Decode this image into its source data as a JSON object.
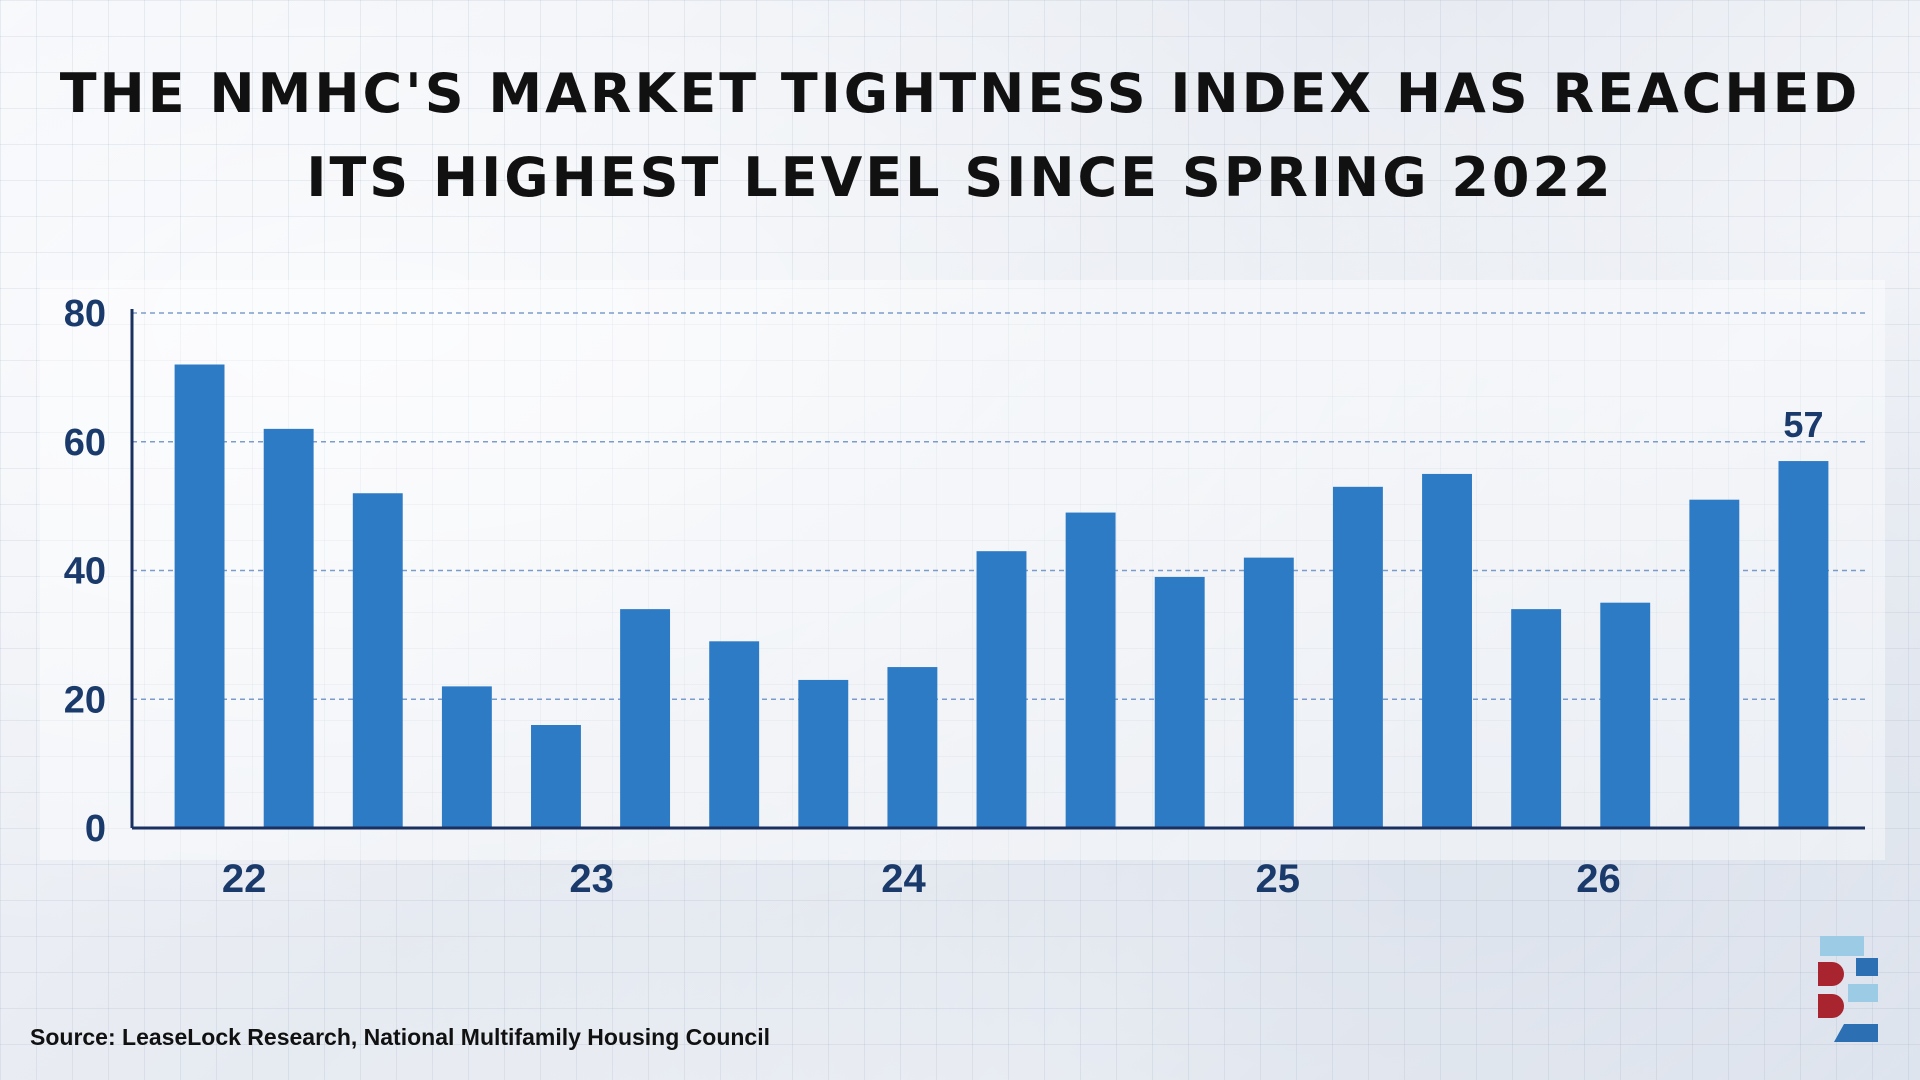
{
  "title_lines": [
    "THE NMHC'S MARKET TIGHTNESS INDEX HAS REACHED",
    "ITS HIGHEST LEVEL SINCE SPRING 2022"
  ],
  "source": "Source: LeaseLock Research, National Multifamily Housing Council",
  "colors": {
    "bar": "#2d7ac5",
    "text": "#1a3a6b",
    "axis": "#1a3060",
    "grid": "#5d86c0",
    "logo_red": "#a8242f",
    "logo_blue": "#2d6fb3",
    "logo_light": "#9ccbe6"
  },
  "chart_data": {
    "type": "bar",
    "title": "THE NMHC'S MARKET TIGHTNESS INDEX HAS REACHED ITS HIGHEST LEVEL SINCE SPRING 2022",
    "ylim": [
      0,
      80
    ],
    "yticks": [
      0,
      20,
      40,
      60,
      80
    ],
    "x_tick_labels": [
      "22",
      "23",
      "24",
      "25",
      "26"
    ],
    "grid": "horizontal dashed",
    "values": [
      72,
      62,
      52,
      22,
      16,
      34,
      29,
      23,
      25,
      43,
      49,
      39,
      42,
      53,
      55,
      34,
      35,
      51,
      57
    ],
    "data_labels": [
      {
        "index": 18,
        "text": "57"
      }
    ]
  }
}
